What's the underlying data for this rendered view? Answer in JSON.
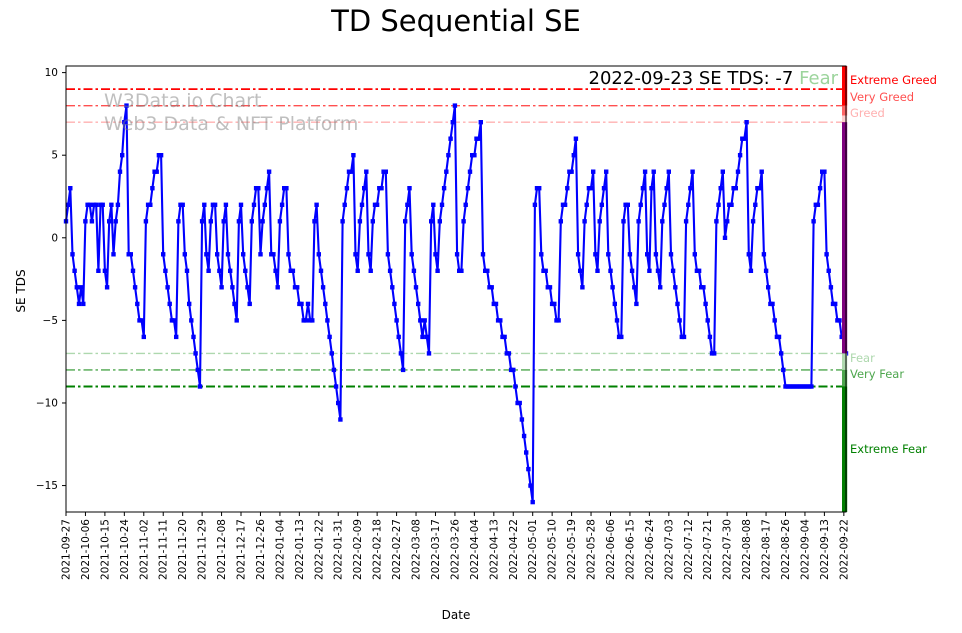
{
  "header": {
    "title": "TD Sequential SE"
  },
  "watermark": {
    "line1": "W3Data.io Chart",
    "line2": "Web3 Data & NFT Platform"
  },
  "annotation": {
    "date_text": "2022-09-23 SE TDS: -7",
    "status_label": "Fear",
    "status_color": "#9cd49c"
  },
  "axis": {
    "xlabel": "Date",
    "ylabel": "SE TDS"
  },
  "chart_data": {
    "type": "line",
    "title": "TD Sequential SE",
    "xlabel": "Date",
    "ylabel": "SE TDS",
    "start_date": "2021-09-27",
    "end_date": "2022-09-23",
    "frequency": "daily",
    "ylim": [
      -16.6,
      10.4
    ],
    "yticks": [
      10,
      5,
      0,
      -5,
      -10,
      -15
    ],
    "grid": false,
    "x_tick_labels": [
      "2021-09-27",
      "2021-10-06",
      "2021-10-15",
      "2021-10-24",
      "2021-11-02",
      "2021-11-11",
      "2021-11-20",
      "2021-11-29",
      "2021-12-08",
      "2021-12-17",
      "2021-12-26",
      "2022-01-04",
      "2022-01-13",
      "2022-01-22",
      "2022-01-31",
      "2022-02-09",
      "2022-02-18",
      "2022-02-27",
      "2022-03-08",
      "2022-03-17",
      "2022-03-26",
      "2022-04-04",
      "2022-04-13",
      "2022-04-22",
      "2022-05-01",
      "2022-05-10",
      "2022-05-19",
      "2022-05-28",
      "2022-06-06",
      "2022-06-15",
      "2022-06-24",
      "2022-07-03",
      "2022-07-12",
      "2022-07-21",
      "2022-07-30",
      "2022-08-08",
      "2022-08-17",
      "2022-08-26",
      "2022-09-04",
      "2022-09-13",
      "2022-09-22"
    ],
    "series": [
      {
        "name": "SE TDS",
        "color": "#0000ff",
        "marker": "square",
        "values": [
          1,
          2,
          3,
          -1,
          -2,
          -3,
          -4,
          -3,
          -4,
          1,
          2,
          2,
          1,
          2,
          2,
          -2,
          2,
          2,
          -2,
          -3,
          1,
          2,
          -1,
          1,
          2,
          4,
          5,
          7,
          8,
          -1,
          -1,
          -2,
          -3,
          -4,
          -5,
          -5,
          -6,
          1,
          2,
          2,
          3,
          4,
          4,
          5,
          5,
          -1,
          -2,
          -3,
          -4,
          -5,
          -5,
          -6,
          1,
          2,
          2,
          -1,
          -2,
          -4,
          -5,
          -6,
          -7,
          -8,
          -9,
          1,
          2,
          -1,
          -2,
          1,
          2,
          2,
          -1,
          -2,
          -3,
          1,
          2,
          -1,
          -2,
          -3,
          -4,
          -5,
          1,
          2,
          -1,
          -2,
          -3,
          -4,
          1,
          2,
          3,
          3,
          -1,
          1,
          2,
          3,
          4,
          -1,
          -1,
          -2,
          -3,
          1,
          2,
          3,
          3,
          -1,
          -2,
          -2,
          -3,
          -3,
          -4,
          -4,
          -5,
          -5,
          -4,
          -5,
          -5,
          1,
          2,
          -1,
          -2,
          -3,
          -4,
          -5,
          -6,
          -7,
          -8,
          -9,
          -10,
          -11,
          1,
          2,
          3,
          4,
          4,
          5,
          -1,
          -2,
          1,
          2,
          3,
          4,
          -1,
          -2,
          1,
          2,
          2,
          3,
          3,
          4,
          4,
          -1,
          -2,
          -3,
          -4,
          -5,
          -6,
          -7,
          -8,
          1,
          2,
          3,
          -1,
          -2,
          -3,
          -4,
          -5,
          -6,
          -5,
          -6,
          -7,
          1,
          2,
          -1,
          -2,
          1,
          2,
          3,
          4,
          5,
          6,
          7,
          8,
          -1,
          -2,
          -2,
          1,
          2,
          3,
          4,
          5,
          5,
          6,
          6,
          7,
          -1,
          -2,
          -2,
          -3,
          -3,
          -4,
          -4,
          -5,
          -5,
          -6,
          -6,
          -7,
          -7,
          -8,
          -8,
          -9,
          -10,
          -10,
          -11,
          -12,
          -13,
          -14,
          -15,
          -16,
          2,
          3,
          3,
          -1,
          -2,
          -2,
          -3,
          -3,
          -4,
          -4,
          -5,
          -5,
          1,
          2,
          2,
          3,
          4,
          4,
          5,
          6,
          -1,
          -2,
          -3,
          1,
          2,
          3,
          3,
          4,
          -1,
          -2,
          1,
          2,
          3,
          4,
          -1,
          -2,
          -3,
          -4,
          -5,
          -6,
          -6,
          1,
          2,
          2,
          -1,
          -2,
          -3,
          -4,
          1,
          2,
          3,
          4,
          -1,
          -2,
          3,
          4,
          -1,
          -2,
          -3,
          1,
          2,
          3,
          4,
          -1,
          -2,
          -3,
          -4,
          -5,
          -6,
          -6,
          1,
          2,
          3,
          4,
          -1,
          -2,
          -2,
          -3,
          -3,
          -4,
          -5,
          -6,
          -7,
          -7,
          1,
          2,
          3,
          4,
          0,
          1,
          2,
          2,
          3,
          3,
          4,
          5,
          6,
          6,
          7,
          -1,
          -2,
          1,
          2,
          3,
          3,
          4,
          -1,
          -2,
          -3,
          -4,
          -4,
          -5,
          -6,
          -6,
          -7,
          -8,
          -9,
          -9,
          -9,
          -9,
          -9,
          -9,
          -9,
          -9,
          -9,
          -9,
          -9,
          -9,
          -9,
          1,
          2,
          2,
          3,
          4,
          4,
          -1,
          -2,
          -3,
          -4,
          -4,
          -5,
          -5,
          -6,
          -6,
          -7
        ]
      }
    ],
    "thresholds": [
      {
        "value": 9,
        "label": "Extreme Greed",
        "color": "#ff0000"
      },
      {
        "value": 8,
        "label": "Very Greed",
        "color": "#ff5050"
      },
      {
        "value": 7,
        "label": "Greed",
        "color": "#ffb0b0"
      },
      {
        "value": -7,
        "label": "Fear",
        "color": "#aed8ae"
      },
      {
        "value": -8,
        "label": "Very Fear",
        "color": "#4da64d"
      },
      {
        "value": -9,
        "label": "Extreme Fear",
        "color": "#008000"
      }
    ],
    "colorbar": [
      {
        "from": 10.4,
        "to": 8,
        "color": "#ff0000"
      },
      {
        "from": 8,
        "to": 7.4,
        "color": "#ff6666"
      },
      {
        "from": 7.4,
        "to": 7,
        "color": "#ffcccc"
      },
      {
        "from": 7,
        "to": -7,
        "color": "#800080"
      },
      {
        "from": -7,
        "to": -8,
        "color": "#aed8ae"
      },
      {
        "from": -8,
        "to": -9,
        "color": "#4da64d"
      },
      {
        "from": -9,
        "to": -16.6,
        "color": "#008000"
      }
    ]
  }
}
